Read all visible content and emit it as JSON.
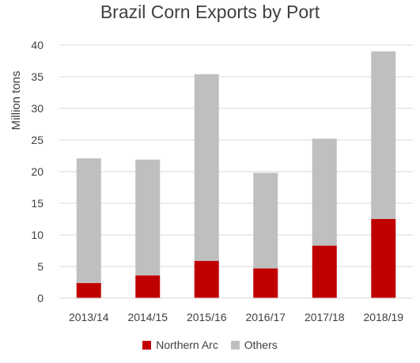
{
  "chart_data": {
    "type": "bar",
    "stacked": true,
    "title": "Brazil Corn Exports by Port",
    "ylabel": "Million tons",
    "xlabel": "",
    "ylim": [
      0,
      40
    ],
    "yticks": [
      0,
      5,
      10,
      15,
      20,
      25,
      30,
      35,
      40
    ],
    "categories": [
      "2013/14",
      "2014/15",
      "2015/16",
      "2016/17",
      "2017/18",
      "2018/19"
    ],
    "series": [
      {
        "name": "Northern Arc",
        "color": "#c00000",
        "values": [
          2.4,
          3.6,
          5.9,
          4.7,
          8.3,
          12.5
        ]
      },
      {
        "name": "Others",
        "color": "#bfbfbf",
        "values": [
          19.7,
          18.3,
          29.5,
          15.1,
          16.9,
          26.5
        ]
      }
    ],
    "grid": true,
    "legend_position": "bottom"
  }
}
